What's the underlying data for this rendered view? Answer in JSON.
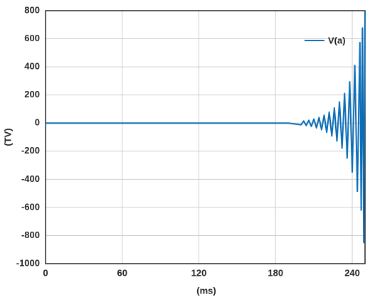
{
  "chart_data": {
    "type": "line",
    "x_label": "(ms)",
    "y_label": "(TV)",
    "x": [
      0,
      190,
      200,
      202,
      204,
      206,
      208,
      210,
      212,
      214,
      216,
      218,
      220,
      222,
      224,
      226,
      228,
      230,
      232,
      234,
      236,
      238,
      240,
      242,
      244,
      246,
      247,
      248,
      249,
      250
    ],
    "series": [
      {
        "name": "V(a)",
        "color": "#0b6db7",
        "values": [
          0,
          0,
          -12,
          15,
          -17,
          20,
          -24,
          29,
          -34,
          40,
          -47,
          56,
          -66,
          78,
          -92,
          108,
          -128,
          151,
          -178,
          211,
          -249,
          294,
          -348,
          411,
          -485,
          573,
          -620,
          677,
          -850,
          800
        ]
      }
    ],
    "xlim": [
      0,
      250
    ],
    "xticks": [
      0,
      60,
      120,
      180,
      240
    ],
    "ylim": [
      -1000,
      800
    ],
    "yticks": [
      -1000,
      -800,
      -600,
      -400,
      -200,
      0,
      200,
      400,
      600,
      800
    ],
    "grid": true,
    "legend": "upper-right"
  }
}
